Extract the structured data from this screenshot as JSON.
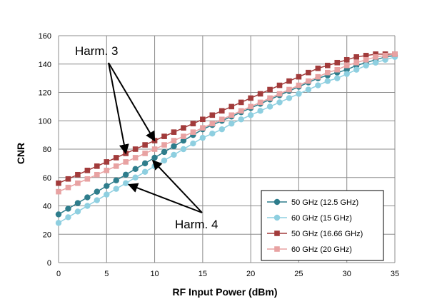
{
  "chart_data": {
    "type": "line",
    "title": "",
    "xlabel": "RF Input Power (dBm)",
    "ylabel": "CNR",
    "xlim": [
      0,
      35
    ],
    "ylim": [
      0,
      160
    ],
    "xticks": [
      0,
      5,
      10,
      15,
      20,
      25,
      30,
      35
    ],
    "yticks": [
      0,
      20,
      40,
      60,
      80,
      100,
      120,
      140,
      160
    ],
    "grid": true,
    "legend_position": "bottom-right",
    "x": [
      0,
      1,
      2,
      3,
      4,
      5,
      6,
      7,
      8,
      9,
      10,
      11,
      12,
      13,
      14,
      15,
      16,
      17,
      18,
      19,
      20,
      21,
      22,
      23,
      24,
      25,
      26,
      27,
      28,
      29,
      30,
      31,
      32,
      33,
      34,
      35
    ],
    "series": [
      {
        "name": "50 GHz (12.5 GHz)",
        "color": "#2e7d8c",
        "marker": "circle",
        "values": [
          34,
          38,
          42,
          46,
          50,
          54,
          58,
          62,
          66,
          70,
          74,
          78,
          82,
          86,
          90,
          94,
          97,
          100,
          103,
          106,
          109,
          112,
          115,
          118,
          121,
          124,
          127,
          130,
          132,
          134,
          136,
          139,
          141,
          143,
          145,
          146
        ]
      },
      {
        "name": "60 GHz (15 GHz)",
        "color": "#8ecfe0",
        "marker": "circle",
        "values": [
          28,
          32,
          36,
          40,
          44,
          48,
          52,
          56,
          60,
          64,
          68,
          72,
          76,
          80,
          84,
          88,
          91,
          94,
          98,
          101,
          104,
          107,
          110,
          113,
          116,
          119,
          122,
          125,
          128,
          130,
          133,
          136,
          139,
          141,
          143,
          145
        ]
      },
      {
        "name": "50 GHz (16.66 GHz)",
        "color": "#a23b3b",
        "marker": "square",
        "values": [
          56,
          59,
          62,
          65,
          68,
          71,
          74,
          77,
          80,
          83,
          86,
          89,
          92,
          95,
          98,
          101,
          104,
          107,
          110,
          113,
          116,
          119,
          122,
          125,
          128,
          131,
          134,
          137,
          139,
          141,
          143,
          145,
          146,
          147,
          147,
          147
        ]
      },
      {
        "name": "60 GHz (20 GHz)",
        "color": "#e8a2a2",
        "marker": "square",
        "values": [
          50,
          53,
          56,
          59,
          62,
          65,
          68,
          71,
          74,
          77,
          80,
          83,
          86,
          89,
          92,
          95,
          98,
          101,
          104,
          107,
          110,
          113,
          116,
          119,
          122,
          125,
          128,
          131,
          134,
          136,
          139,
          141,
          143,
          145,
          146,
          147
        ]
      }
    ],
    "annotations": [
      {
        "text": "Harm. 3",
        "targets": [
          [
            7,
            77
          ],
          [
            10,
            86
          ]
        ]
      },
      {
        "text": "Harm. 4",
        "targets": [
          [
            7.3,
            55
          ],
          [
            9.8,
            72
          ]
        ]
      }
    ]
  }
}
